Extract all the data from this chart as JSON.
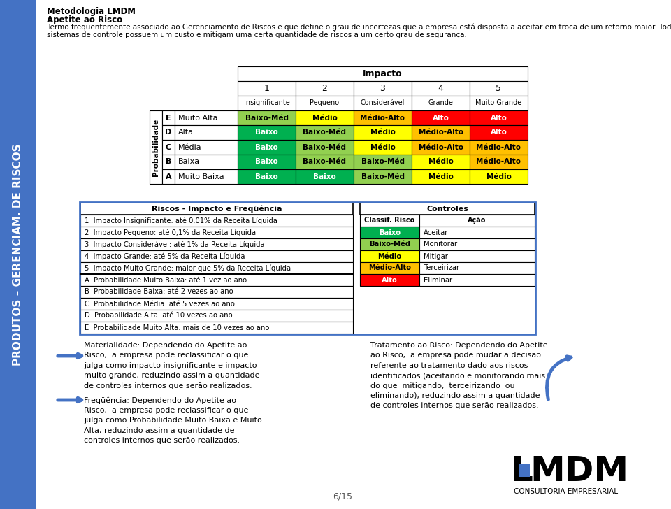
{
  "sidebar_color": "#4472c4",
  "sidebar_text": "PRODUTOS – GERENCIAM. DE RISCOS",
  "title1": "Metodologia LMDM",
  "title2": "Apetite ao Risco",
  "intro_line1": "Termo freqüentemente associado ao Gerenciamento de Riscos e que define o grau de incertezas que a empresa está disposta a aceitar em troca de um retorno maior. Todos os",
  "intro_line2": "sistemas de controle possuem um custo e mitigam uma certa quantidade de riscos a um certo grau de segurança.",
  "impacto_header": "Impacto",
  "prob_header": "Probabilidade",
  "impact_nums": [
    "1",
    "2",
    "3",
    "4",
    "5"
  ],
  "impact_labels": [
    "Insignificante",
    "Pequeno",
    "Considerável",
    "Grande",
    "Muito Grande"
  ],
  "prob_rows": [
    {
      "letter": "E",
      "label": "Muito Alta",
      "cells": [
        "Baixo-Méd",
        "Médio",
        "Médio-Alto",
        "Alto",
        "Alto"
      ],
      "colors": [
        "#92d050",
        "#ffff00",
        "#ffc000",
        "#ff0000",
        "#ff0000"
      ]
    },
    {
      "letter": "D",
      "label": "Alta",
      "cells": [
        "Baixo",
        "Baixo-Méd",
        "Médio",
        "Médio-Alto",
        "Alto"
      ],
      "colors": [
        "#00b050",
        "#92d050",
        "#ffff00",
        "#ffc000",
        "#ff0000"
      ]
    },
    {
      "letter": "C",
      "label": "Média",
      "cells": [
        "Baixo",
        "Baixo-Méd",
        "Médio",
        "Médio-Alto",
        "Médio-Alto"
      ],
      "colors": [
        "#00b050",
        "#92d050",
        "#ffff00",
        "#ffc000",
        "#ffc000"
      ]
    },
    {
      "letter": "B",
      "label": "Baixa",
      "cells": [
        "Baixo",
        "Baixo-Méd",
        "Baixo-Méd",
        "Médio",
        "Médio-Alto"
      ],
      "colors": [
        "#00b050",
        "#92d050",
        "#92d050",
        "#ffff00",
        "#ffc000"
      ]
    },
    {
      "letter": "A",
      "label": "Muito Baixa",
      "cells": [
        "Baixo",
        "Baixo",
        "Baixo-Méd",
        "Médio",
        "Médio"
      ],
      "colors": [
        "#00b050",
        "#00b050",
        "#92d050",
        "#ffff00",
        "#ffff00"
      ]
    }
  ],
  "riscos_header": "Riscos - Impacto e Freqüência",
  "controles_header": "Controles",
  "riscos_items": [
    "1  Impacto Insignificante: até 0,01% da Receita Líquida",
    "2  Impacto Pequeno: até 0,1% da Receita Líquida",
    "3  Impacto Considerável: até 1% da Receita Líquida",
    "4  Impacto Grande: até 5% da Receita Líquida",
    "5  Impacto Muito Grande: maior que 5% da Receita Líquida",
    "A  Probabilidade Muito Baixa: até 1 vez ao ano",
    "B  Probabilidade Baixa: até 2 vezes ao ano",
    "C  Probabilidade Média: até 5 vezes ao ano",
    "D  Probabilidade Alta: até 10 vezes ao ano",
    "E  Probabilidade Muito Alta: mais de 10 vezes ao ano"
  ],
  "controles_items": [
    {
      "classif": "Baixo",
      "acao": "Aceitar",
      "color": "#00b050"
    },
    {
      "classif": "Baixo-Méd",
      "acao": "Monitorar",
      "color": "#92d050"
    },
    {
      "classif": "Médio",
      "acao": "Mitigar",
      "color": "#ffff00"
    },
    {
      "classif": "Médio-Alto",
      "acao": "Terceirizar",
      "color": "#ffc000"
    },
    {
      "classif": "Alto",
      "acao": "Eliminar",
      "color": "#ff0000"
    }
  ],
  "controles_col_headers": [
    "Classif. Risco",
    "Ação"
  ],
  "mat_text": "Materialidade: Dependendo do Apetite ao\nRisco,  a empresa pode reclassificar o que\njulga como impacto insignificante e impacto\nmuito grande, reduzindo assim a quantidade\nde controles internos que serão realizados.",
  "freq_text": "Freqüência: Dependendo do Apetite ao\nRisco,  a empresa pode reclassificar o que\njulga como Probabilidade Muito Baixa e Muito\nAlta, reduzindo assim a quantidade de\ncontroles internos que serão realizados.",
  "trat_text": "Tratamento ao Risco: Dependendo do Apetite\nao Risco,  a empresa pode mudar a decisão\nreferente ao tratamento dado aos riscos\nidentificados (aceitando e monitorando mais\ndo que  mitigando,  terceirizando  ou\neliminando), reduzindo assim a quantidade\nde controles internos que serão realizados.",
  "page_num": "6/15",
  "lmdm_text": "CONSULTORIA EMPRESARIAL"
}
